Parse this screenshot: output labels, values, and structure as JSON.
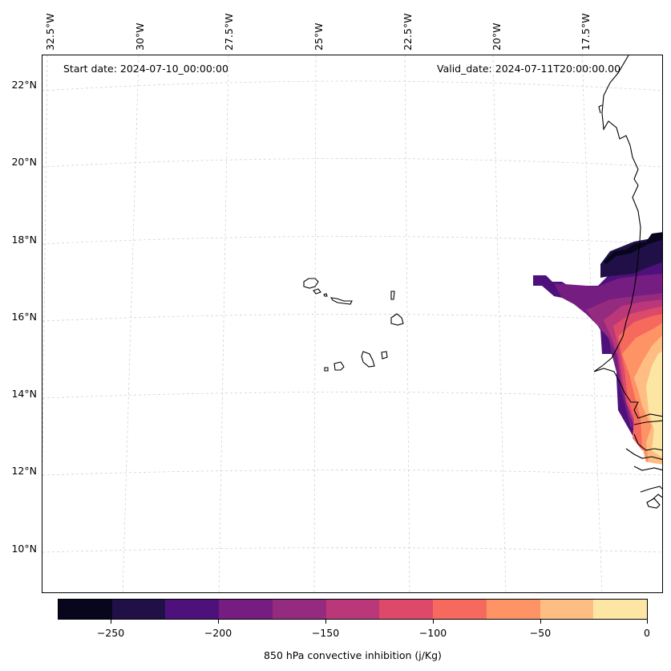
{
  "header": {
    "start_date": "Start date: 2024-07-10_00:00:00",
    "valid_date": "Valid_date: 2024-07-11T20:00:00.00"
  },
  "lon_labels": [
    "32.5°W",
    "30°W",
    "27.5°W",
    "25°W",
    "22.5°W",
    "20°W",
    "17.5°W"
  ],
  "lat_labels": [
    "22°N",
    "20°N",
    "18°N",
    "16°N",
    "14°N",
    "12°N",
    "10°N"
  ],
  "colorbar": {
    "title": "850 hPa convective inhibition (j/Kg)",
    "tick_labels": [
      "−250",
      "−200",
      "−150",
      "−100",
      "−50",
      "0"
    ],
    "colors": [
      "#07061c",
      "#211047",
      "#4e117b",
      "#751d81",
      "#952b7e",
      "#ba3879",
      "#dd4a69",
      "#f56a5c",
      "#fe9466",
      "#febe83",
      "#fde6a4"
    ]
  }
}
